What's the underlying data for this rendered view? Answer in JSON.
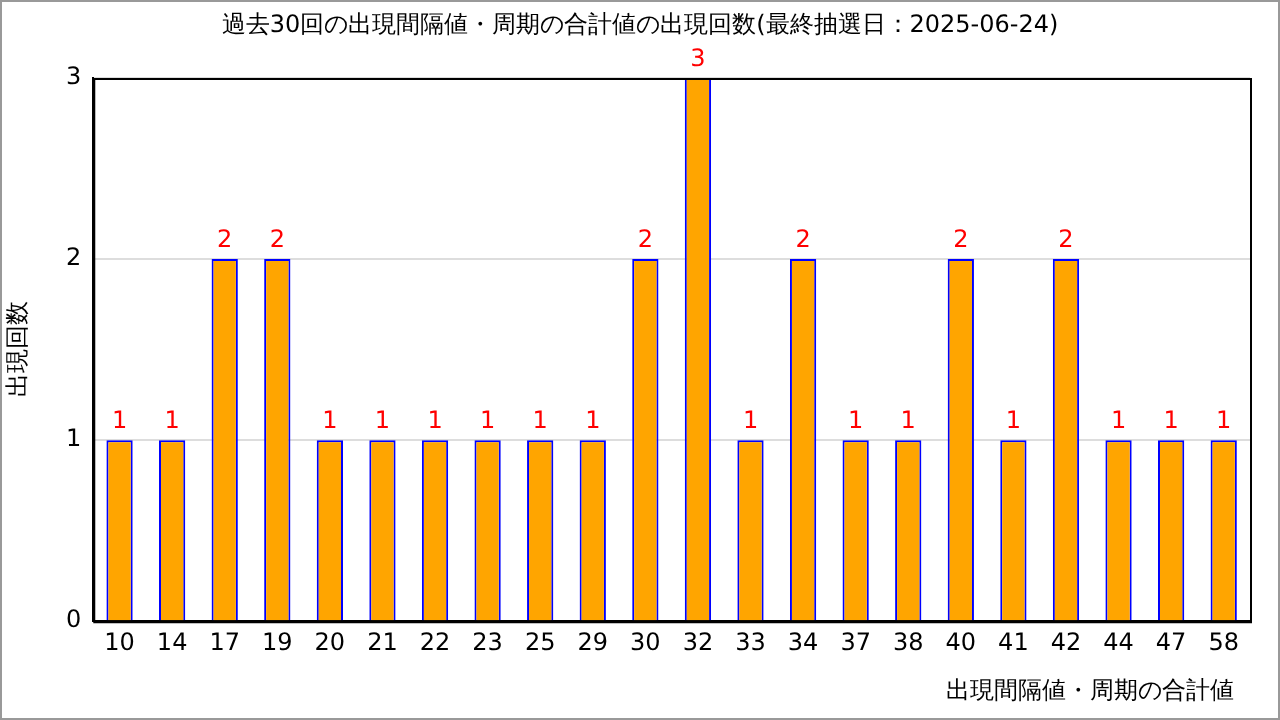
{
  "chart_data": {
    "type": "bar",
    "title": "過去30回の出現間隔値・周期の合計値の出現回数(最終抽選日：2025-06-24)",
    "xlabel": "出現間隔値・周期の合計値",
    "ylabel": "出現回数",
    "categories": [
      "10",
      "14",
      "17",
      "19",
      "20",
      "21",
      "22",
      "23",
      "25",
      "29",
      "30",
      "32",
      "33",
      "34",
      "37",
      "38",
      "40",
      "41",
      "42",
      "44",
      "47",
      "58"
    ],
    "values": [
      1,
      1,
      2,
      2,
      1,
      1,
      1,
      1,
      1,
      1,
      2,
      3,
      1,
      2,
      1,
      1,
      2,
      1,
      2,
      1,
      1,
      1
    ],
    "color": "#ffa500",
    "ylim": [
      0,
      3
    ],
    "yticks": [
      0,
      1,
      2,
      3
    ],
    "grid": "y",
    "data_labels": true,
    "legend": false
  }
}
